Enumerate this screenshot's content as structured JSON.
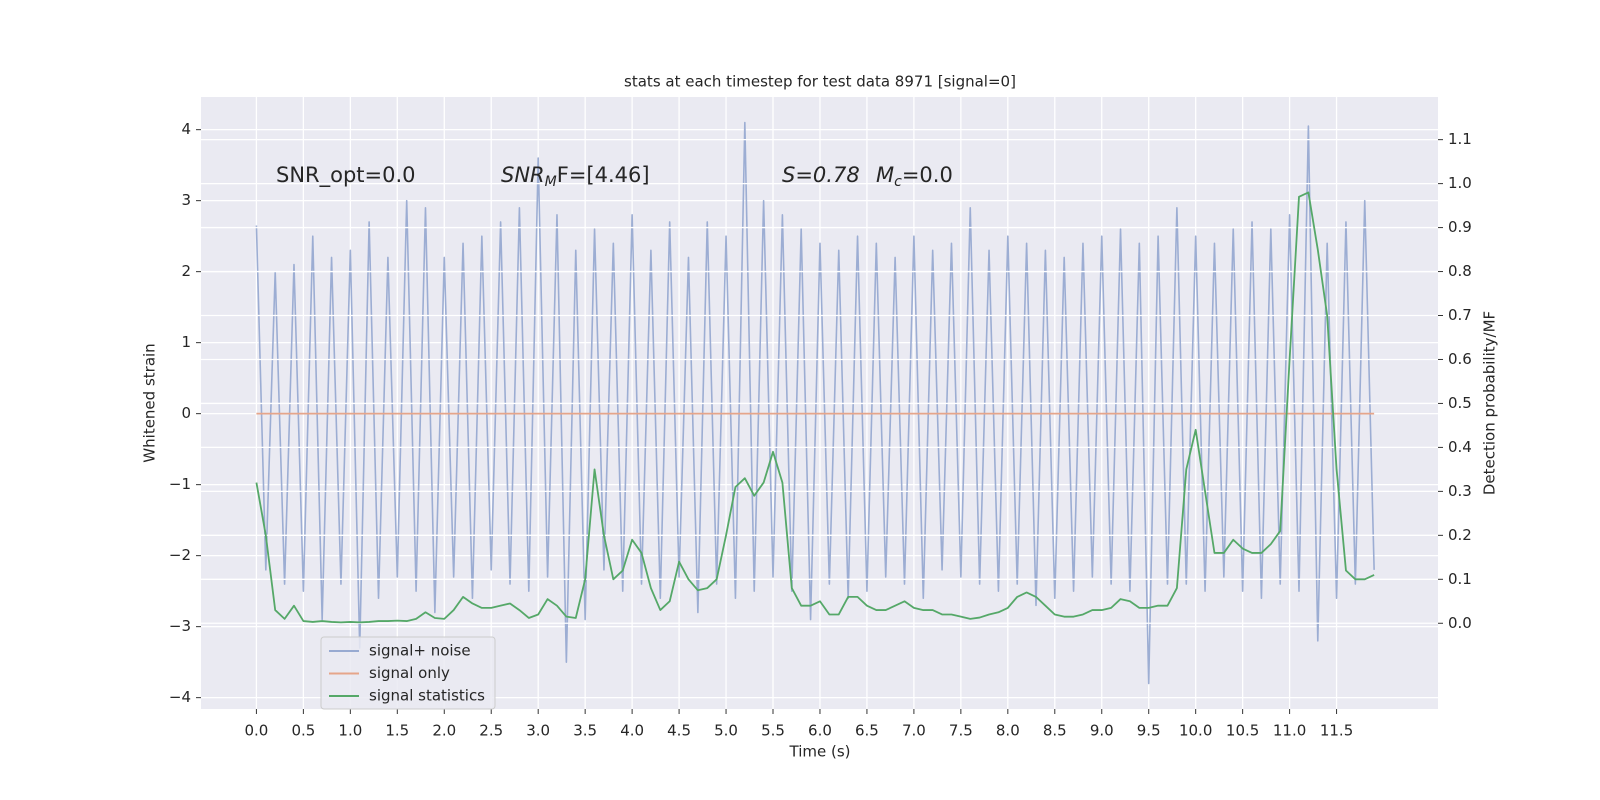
{
  "chart_data": {
    "type": "line",
    "title": "stats at each timestep for test data 8971 [signal=0]",
    "x_label": "Time (s)",
    "y_label": "Whitened strain",
    "y2_label": "Detection probability/MF",
    "annotations": [
      {
        "text": "SNR_opt=0.0"
      },
      {
        "text": "SNR",
        "sub": "M",
        "after": "F=[4.46]"
      },
      {
        "text": "S=0.78"
      },
      {
        "text": "M",
        "sub": "c",
        "after": "=0.0"
      }
    ],
    "x": [
      0,
      0.1,
      0.2,
      0.3,
      0.4,
      0.5,
      0.6,
      0.7,
      0.8,
      0.9,
      1.0,
      1.1,
      1.2,
      1.3,
      1.4,
      1.5,
      1.6,
      1.7,
      1.8,
      1.9,
      2.0,
      2.1,
      2.2,
      2.3,
      2.4,
      2.5,
      2.6,
      2.7,
      2.8,
      2.9,
      3.0,
      3.1,
      3.2,
      3.3,
      3.4,
      3.5,
      3.6,
      3.7,
      3.8,
      3.9,
      4.0,
      4.1,
      4.2,
      4.3,
      4.4,
      4.5,
      4.6,
      4.7,
      4.8,
      4.9,
      5.0,
      5.1,
      5.2,
      5.3,
      5.4,
      5.5,
      5.6,
      5.7,
      5.8,
      5.9,
      6.0,
      6.1,
      6.2,
      6.3,
      6.4,
      6.5,
      6.6,
      6.7,
      6.8,
      6.9,
      7.0,
      7.1,
      7.2,
      7.3,
      7.4,
      7.5,
      7.6,
      7.7,
      7.8,
      7.9,
      8.0,
      8.1,
      8.2,
      8.3,
      8.4,
      8.5,
      8.6,
      8.7,
      8.8,
      8.9,
      9.0,
      9.1,
      9.2,
      9.3,
      9.4,
      9.5,
      9.6,
      9.7,
      9.8,
      9.9,
      10.0,
      10.1,
      10.2,
      10.3,
      10.4,
      10.5,
      10.6,
      10.7,
      10.8,
      10.9,
      11.0,
      11.1,
      11.2,
      11.3,
      11.4,
      11.5,
      11.6,
      11.7,
      11.8,
      11.9
    ],
    "series": [
      {
        "name": "signal+ noise",
        "color": "#98aad1",
        "values": [
          2.65,
          -2.2,
          2.0,
          -2.4,
          2.1,
          -2.5,
          2.5,
          -2.9,
          2.2,
          -2.4,
          2.3,
          -3.3,
          2.7,
          -2.6,
          2.2,
          -2.3,
          3.0,
          -2.5,
          2.9,
          -2.8,
          2.2,
          -2.3,
          2.4,
          -2.6,
          2.5,
          -2.2,
          2.7,
          -2.4,
          2.9,
          -2.5,
          3.6,
          -2.3,
          2.8,
          -3.5,
          2.3,
          -2.9,
          2.6,
          -2.2,
          2.4,
          -2.5,
          2.8,
          -2.4,
          2.3,
          -2.6,
          2.7,
          -2.3,
          2.2,
          -2.8,
          2.7,
          -2.4,
          2.5,
          -2.6,
          4.1,
          -2.5,
          3.0,
          -2.3,
          2.8,
          -2.5,
          2.6,
          -2.9,
          2.4,
          -2.4,
          2.3,
          -2.6,
          2.5,
          -2.5,
          2.4,
          -2.3,
          2.2,
          -2.4,
          2.5,
          -2.6,
          2.3,
          -2.2,
          2.4,
          -2.3,
          2.9,
          -2.4,
          2.3,
          -2.5,
          2.5,
          -2.4,
          2.4,
          -2.7,
          2.3,
          -2.6,
          2.2,
          -2.5,
          2.4,
          -2.3,
          2.5,
          -2.4,
          2.6,
          -2.5,
          2.4,
          -3.8,
          2.5,
          -2.4,
          2.9,
          -2.4,
          2.5,
          -2.5,
          2.4,
          -2.3,
          2.6,
          -2.5,
          2.7,
          -2.6,
          2.6,
          -2.4,
          2.8,
          -2.5,
          4.05,
          -3.2,
          2.4,
          -2.6,
          2.7,
          -2.4,
          3.0,
          -2.2
        ]
      },
      {
        "name": "signal only",
        "color": "#e6a58a",
        "x": [
          0,
          11.9
        ],
        "values": [
          0,
          0
        ]
      },
      {
        "name": "signal statistics",
        "color": "#55a868",
        "axis": "y2",
        "values": [
          0.32,
          0.2,
          0.03,
          0.01,
          0.04,
          0.005,
          0.003,
          0.005,
          0.003,
          0.002,
          0.003,
          0.002,
          0.003,
          0.005,
          0.005,
          0.006,
          0.005,
          0.01,
          0.025,
          0.012,
          0.01,
          0.03,
          0.06,
          0.045,
          0.035,
          0.035,
          0.04,
          0.045,
          0.03,
          0.012,
          0.02,
          0.055,
          0.04,
          0.015,
          0.012,
          0.1,
          0.35,
          0.2,
          0.1,
          0.12,
          0.19,
          0.16,
          0.08,
          0.03,
          0.05,
          0.14,
          0.1,
          0.075,
          0.08,
          0.1,
          0.2,
          0.31,
          0.33,
          0.29,
          0.32,
          0.39,
          0.32,
          0.08,
          0.04,
          0.04,
          0.05,
          0.02,
          0.02,
          0.06,
          0.06,
          0.04,
          0.03,
          0.03,
          0.04,
          0.05,
          0.035,
          0.03,
          0.03,
          0.02,
          0.02,
          0.015,
          0.01,
          0.013,
          0.02,
          0.025,
          0.035,
          0.06,
          0.07,
          0.06,
          0.04,
          0.02,
          0.015,
          0.015,
          0.02,
          0.03,
          0.03,
          0.035,
          0.055,
          0.05,
          0.035,
          0.035,
          0.04,
          0.04,
          0.08,
          0.35,
          0.44,
          0.3,
          0.16,
          0.16,
          0.19,
          0.17,
          0.16,
          0.16,
          0.18,
          0.21,
          0.6,
          0.97,
          0.98,
          0.85,
          0.7,
          0.35,
          0.12,
          0.1,
          0.1,
          0.11
        ]
      }
    ],
    "xlim": [
      -0.59,
      12.58
    ],
    "ylim": [
      -4.16,
      4.46
    ],
    "y2lim": [
      -0.195,
      1.197
    ],
    "xticks": [
      {
        "value": 0,
        "label": "0.0"
      },
      {
        "value": 0.5,
        "label": "0.5"
      },
      {
        "value": 1,
        "label": "1.0"
      },
      {
        "value": 1.5,
        "label": "1.5"
      },
      {
        "value": 2,
        "label": "2.0"
      },
      {
        "value": 2.5,
        "label": "2.5"
      },
      {
        "value": 3,
        "label": "3.0"
      },
      {
        "value": 3.5,
        "label": "3.5"
      },
      {
        "value": 4,
        "label": "4.0"
      },
      {
        "value": 4.5,
        "label": "4.5"
      },
      {
        "value": 5,
        "label": "5.0"
      },
      {
        "value": 5.5,
        "label": "5.5"
      },
      {
        "value": 6,
        "label": "6.0"
      },
      {
        "value": 6.5,
        "label": "6.5"
      },
      {
        "value": 7,
        "label": "7.0"
      },
      {
        "value": 7.5,
        "label": "7.5"
      },
      {
        "value": 8,
        "label": "8.0"
      },
      {
        "value": 8.5,
        "label": "8.5"
      },
      {
        "value": 9,
        "label": "9.0"
      },
      {
        "value": 9.5,
        "label": "9.5"
      },
      {
        "value": 10,
        "label": "10.0"
      },
      {
        "value": 10.5,
        "label": "10.5"
      },
      {
        "value": 11,
        "label": "11.0"
      },
      {
        "value": 11.5,
        "label": "11.5"
      }
    ],
    "yticks": [
      {
        "value": -4,
        "label": "−4"
      },
      {
        "value": -3,
        "label": "−3"
      },
      {
        "value": -2,
        "label": "−2"
      },
      {
        "value": -1,
        "label": "−1"
      },
      0,
      1,
      2,
      3,
      4
    ],
    "y2ticks": [
      {
        "value": 0,
        "label": "0.0"
      },
      {
        "value": 0.1,
        "label": "0.1"
      },
      {
        "value": 0.2,
        "label": "0.2"
      },
      {
        "value": 0.3,
        "label": "0.3"
      },
      {
        "value": 0.4,
        "label": "0.4"
      },
      {
        "value": 0.5,
        "label": "0.5"
      },
      {
        "value": 0.6,
        "label": "0.6"
      },
      {
        "value": 0.7,
        "label": "0.7"
      },
      {
        "value": 0.8,
        "label": "0.8"
      },
      {
        "value": 0.9,
        "label": "0.9"
      },
      {
        "value": 1,
        "label": "1.0"
      },
      {
        "value": 1.1,
        "label": "1.1"
      }
    ],
    "grid": true,
    "legend": "lower left",
    "background": "#eaeaf2"
  }
}
